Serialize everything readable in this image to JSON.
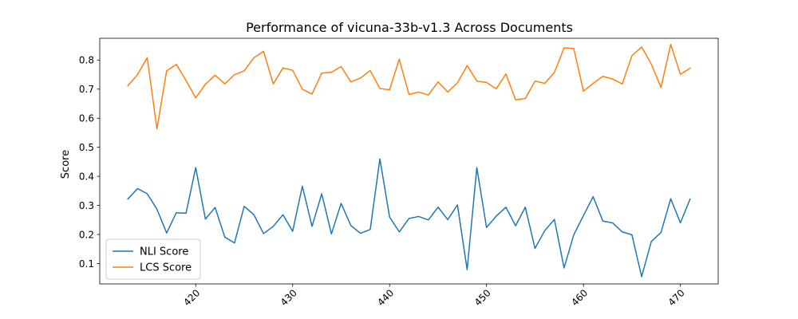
{
  "chart_data": {
    "type": "line",
    "title": "Performance of vicuna-33b-v1.3 Across Documents",
    "xlabel": "",
    "ylabel": "Score",
    "xlim": [
      410.1,
      473.9
    ],
    "ylim": [
      0.03,
      0.875
    ],
    "x_ticks": [
      420,
      430,
      440,
      450,
      460,
      470
    ],
    "y_ticks": [
      0.1,
      0.2,
      0.3,
      0.4,
      0.5,
      0.6,
      0.7,
      0.8
    ],
    "x_tick_labels": [
      "420",
      "430",
      "440",
      "450",
      "460",
      "470"
    ],
    "y_tick_labels": [
      "0.1",
      "0.2",
      "0.3",
      "0.4",
      "0.5",
      "0.6",
      "0.7",
      "0.8"
    ],
    "grid": false,
    "legend_position": "lower-left",
    "x": [
      413,
      414,
      415,
      416,
      417,
      418,
      419,
      420,
      421,
      422,
      423,
      424,
      425,
      426,
      427,
      428,
      429,
      430,
      431,
      432,
      433,
      434,
      435,
      436,
      437,
      438,
      439,
      440,
      441,
      442,
      443,
      444,
      445,
      446,
      447,
      448,
      449,
      450,
      451,
      452,
      453,
      454,
      455,
      456,
      457,
      458,
      459,
      460,
      461,
      462,
      463,
      464,
      465,
      466,
      467,
      468,
      469,
      470,
      471
    ],
    "series": [
      {
        "name": "NLI Score",
        "color": "#1f77b4",
        "values": [
          0.322,
          0.358,
          0.34,
          0.287,
          0.205,
          0.275,
          0.273,
          0.43,
          0.253,
          0.293,
          0.191,
          0.171,
          0.297,
          0.268,
          0.203,
          0.228,
          0.268,
          0.211,
          0.366,
          0.228,
          0.34,
          0.202,
          0.307,
          0.231,
          0.204,
          0.217,
          0.46,
          0.26,
          0.209,
          0.255,
          0.262,
          0.25,
          0.294,
          0.251,
          0.302,
          0.079,
          0.43,
          0.224,
          0.263,
          0.294,
          0.23,
          0.294,
          0.152,
          0.213,
          0.252,
          0.085,
          0.199,
          0.265,
          0.33,
          0.246,
          0.24,
          0.209,
          0.199,
          0.055,
          0.176,
          0.207,
          0.323,
          0.24,
          0.322
        ]
      },
      {
        "name": "LCS Score",
        "color": "#ff7f0e",
        "values": [
          0.712,
          0.75,
          0.808,
          0.563,
          0.763,
          0.785,
          0.73,
          0.67,
          0.717,
          0.748,
          0.718,
          0.75,
          0.763,
          0.808,
          0.83,
          0.718,
          0.773,
          0.765,
          0.7,
          0.683,
          0.755,
          0.758,
          0.778,
          0.725,
          0.738,
          0.764,
          0.702,
          0.698,
          0.803,
          0.682,
          0.69,
          0.68,
          0.725,
          0.69,
          0.722,
          0.781,
          0.728,
          0.723,
          0.701,
          0.752,
          0.663,
          0.668,
          0.728,
          0.72,
          0.757,
          0.842,
          0.84,
          0.693,
          0.72,
          0.744,
          0.735,
          0.718,
          0.815,
          0.845,
          0.786,
          0.706,
          0.854,
          0.751,
          0.772
        ]
      }
    ]
  }
}
